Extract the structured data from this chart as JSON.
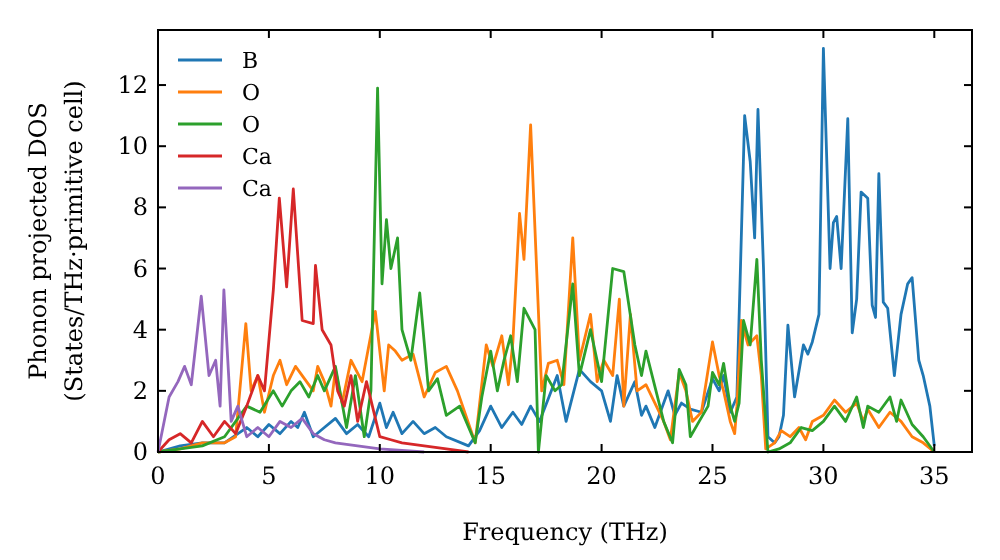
{
  "chart_data": {
    "type": "line",
    "xlabel": "Frequency (THz)",
    "ylabel": "Phonon projected DOS\n(States/THz·primitive cell)",
    "xlim": [
      0,
      36.7
    ],
    "ylim": [
      0,
      13.8
    ],
    "xticks": [
      0,
      5,
      10,
      15,
      20,
      25,
      30,
      35
    ],
    "yticks": [
      0,
      2,
      4,
      6,
      8,
      10,
      12
    ],
    "legend": "top left",
    "grid": false,
    "series": [
      {
        "name": "B",
        "color": "#1f77b4",
        "x": [
          0,
          1,
          2,
          3,
          4,
          4.5,
          5,
          5.5,
          6,
          6.3,
          6.6,
          7,
          7.5,
          8,
          8.5,
          9,
          9.5,
          10,
          10.3,
          10.6,
          11,
          11.5,
          12,
          12.5,
          13,
          14,
          14.5,
          15,
          15.5,
          16,
          16.4,
          16.8,
          17.2,
          18,
          18.4,
          19,
          19.5,
          20,
          20.4,
          20.7,
          21,
          21.5,
          21.8,
          22,
          22.4,
          23,
          23.3,
          23.6,
          24,
          24.5,
          25,
          25.3,
          25.5,
          25.8,
          26.1,
          26.45,
          26.7,
          26.9,
          27.05,
          27.3,
          27.5,
          27.8,
          28,
          28.2,
          28.4,
          28.7,
          29.1,
          29.3,
          29.5,
          29.8,
          30,
          30.3,
          30.45,
          30.6,
          30.8,
          31.1,
          31.3,
          31.5,
          31.7,
          32,
          32.2,
          32.35,
          32.5,
          32.7,
          32.9,
          33.2,
          33.5,
          33.8,
          34,
          34.3,
          34.5,
          34.8,
          35
        ],
        "values": [
          0,
          0.2,
          0.3,
          0.3,
          0.8,
          0.5,
          0.9,
          0.6,
          1.0,
          0.8,
          1.3,
          0.5,
          0.8,
          1.1,
          0.6,
          0.9,
          0.5,
          1.6,
          0.8,
          1.3,
          0.6,
          1.0,
          0.6,
          0.8,
          0.5,
          0.2,
          0.7,
          1.5,
          0.8,
          1.3,
          0.9,
          1.5,
          1.0,
          2.5,
          1.0,
          2.7,
          2.3,
          2.0,
          1.0,
          2.5,
          1.5,
          2.3,
          1.2,
          1.5,
          0.8,
          2.0,
          1.2,
          1.6,
          1.4,
          1.3,
          2.4,
          2.0,
          2.5,
          1.3,
          1.8,
          11.0,
          9.5,
          7.0,
          11.2,
          6.0,
          0.5,
          0.3,
          0.5,
          1.2,
          4.15,
          1.8,
          3.5,
          3.2,
          3.6,
          4.5,
          13.2,
          6.0,
          7.5,
          7.7,
          6.0,
          10.9,
          3.9,
          5.0,
          8.5,
          8.3,
          4.8,
          4.4,
          9.1,
          4.9,
          4.7,
          2.5,
          4.5,
          5.5,
          5.7,
          3.0,
          2.5,
          1.5,
          0.2
        ]
      },
      {
        "name": "O",
        "color": "#ff7f0e",
        "x": [
          0,
          1,
          2,
          3,
          3.5,
          3.96,
          4.2,
          4.5,
          4.8,
          5.2,
          5.5,
          5.8,
          6.2,
          6.6,
          7,
          7.2,
          7.5,
          7.8,
          8,
          8.3,
          8.7,
          9.2,
          9.8,
          10.2,
          10.4,
          10.7,
          11,
          11.5,
          12,
          12.5,
          13,
          13.5,
          14.3,
          14.8,
          15.1,
          15.5,
          15.8,
          16,
          16.3,
          16.5,
          16.8,
          17.3,
          17.6,
          18,
          18.3,
          18.7,
          19,
          19.5,
          19.8,
          20.1,
          20.5,
          20.8,
          21.0,
          21.3,
          21.6,
          22,
          22.8,
          23.1,
          23.5,
          23.8,
          24.1,
          24.5,
          25,
          25.3,
          25.5,
          25.8,
          26,
          26.1,
          26.3,
          26.6,
          27,
          27.2,
          27.4,
          27.8,
          28.1,
          28.5,
          28.9,
          29.2,
          29.5,
          30,
          30.5,
          31,
          31.5,
          31.8,
          32,
          32.5,
          33,
          33.5,
          34,
          34.5,
          35
        ],
        "values": [
          0,
          0.1,
          0.3,
          0.3,
          0.5,
          4.2,
          2.0,
          2.5,
          1.3,
          2.5,
          3.0,
          2.2,
          2.8,
          2.4,
          2.0,
          2.8,
          2.3,
          1.5,
          2.7,
          1.6,
          3.0,
          2.3,
          4.6,
          2.0,
          3.5,
          3.3,
          3.0,
          3.2,
          1.8,
          2.6,
          2.8,
          2.0,
          0.3,
          3.5,
          2.8,
          3.8,
          2.2,
          3.6,
          7.8,
          6.3,
          10.7,
          2.0,
          2.9,
          3.0,
          2.2,
          7.0,
          3.0,
          4.5,
          2.3,
          3.0,
          2.5,
          5.0,
          1.5,
          4.5,
          2.0,
          2.2,
          1.0,
          0.4,
          2.6,
          2.0,
          1.0,
          1.3,
          3.6,
          2.5,
          2.0,
          1.0,
          0.6,
          1.5,
          4.3,
          3.5,
          3.8,
          2.5,
          0.1,
          0.3,
          0.7,
          0.5,
          0.8,
          0.4,
          1.0,
          1.2,
          1.7,
          1.3,
          1.6,
          1.0,
          1.4,
          0.8,
          1.3,
          1.0,
          0.5,
          0.3,
          0
        ]
      },
      {
        "name": "O",
        "color": "#2ca02c",
        "x": [
          0,
          1,
          2,
          3,
          4,
          4.6,
          5.2,
          5.6,
          6,
          6.4,
          6.8,
          7.2,
          7.5,
          8,
          8.5,
          8.9,
          9.3,
          9.6,
          9.9,
          10.1,
          10.3,
          10.5,
          10.8,
          11,
          11.4,
          11.8,
          12.2,
          12.6,
          13,
          13.6,
          14.3,
          14.6,
          15,
          15.3,
          15.6,
          15.9,
          16.2,
          16.5,
          17,
          17.15,
          17.5,
          17.9,
          18.2,
          18.7,
          19,
          19.5,
          20,
          20.5,
          21.0,
          21.5,
          21.8,
          22,
          22.8,
          23.2,
          23.5,
          23.8,
          24,
          24.4,
          24.8,
          25,
          25.3,
          25.5,
          25.8,
          26,
          26.2,
          26.4,
          26.7,
          27,
          27.2,
          27.5,
          28,
          28.5,
          29,
          29.5,
          30,
          30.5,
          31,
          31.5,
          31.8,
          32,
          32.5,
          33,
          33.3,
          33.5,
          34,
          34.5,
          35
        ],
        "values": [
          0,
          0.1,
          0.2,
          0.5,
          1.5,
          1.3,
          2.0,
          1.5,
          2.0,
          2.3,
          1.8,
          2.5,
          2.0,
          2.8,
          0.8,
          2.5,
          0.5,
          2.0,
          11.9,
          5.5,
          7.6,
          6.0,
          7.0,
          4.0,
          3.0,
          5.2,
          2.0,
          2.4,
          1.2,
          1.5,
          0.3,
          1.8,
          3.3,
          2.0,
          3.0,
          3.8,
          2.3,
          4.7,
          4.0,
          0,
          2.5,
          2.0,
          2.2,
          5.5,
          2.5,
          4.0,
          2.3,
          6.0,
          5.9,
          3.5,
          2.5,
          3.3,
          1.0,
          0.3,
          2.7,
          2.2,
          0.5,
          1.0,
          1.5,
          2.6,
          2.2,
          2.9,
          1.5,
          1.0,
          1.6,
          4.3,
          3.5,
          6.3,
          3.0,
          0,
          0.1,
          0.3,
          0.8,
          0.7,
          1.0,
          1.5,
          1.0,
          1.8,
          0.8,
          1.5,
          1.3,
          1.8,
          1.0,
          1.7,
          0.9,
          0.5,
          0
        ]
      },
      {
        "name": "Ca",
        "color": "#d62728",
        "x": [
          0,
          0.5,
          1,
          1.5,
          2,
          2.5,
          3,
          3.5,
          4,
          4.5,
          4.8,
          5.2,
          5.47,
          5.8,
          6.1,
          6.5,
          7.0,
          7.1,
          7.4,
          7.8,
          8.1,
          8.4,
          8.7,
          9,
          9.4,
          10,
          10.5,
          11,
          12,
          13,
          14
        ],
        "values": [
          0,
          0.4,
          0.6,
          0.3,
          1.0,
          0.5,
          1.0,
          0.6,
          1.5,
          2.5,
          2.0,
          5.3,
          8.3,
          5.4,
          8.6,
          4.3,
          4.2,
          6.1,
          4.0,
          3.5,
          2.0,
          1.5,
          2.5,
          1.0,
          2.3,
          0.5,
          0.4,
          0.3,
          0.2,
          0.1,
          0
        ]
      },
      {
        "name": "Ca",
        "color": "#9467bd",
        "x": [
          0,
          0.5,
          0.9,
          1.2,
          1.5,
          1.95,
          2.3,
          2.6,
          2.8,
          2.97,
          3.3,
          3.6,
          4,
          4.5,
          5,
          5.5,
          6,
          6.5,
          7,
          7.5,
          8,
          9,
          10,
          12
        ],
        "values": [
          0,
          1.8,
          2.3,
          2.8,
          2.2,
          5.1,
          2.5,
          3.0,
          1.5,
          5.3,
          1.0,
          1.5,
          0.5,
          0.8,
          0.5,
          1.0,
          0.8,
          1.1,
          0.6,
          0.4,
          0.3,
          0.2,
          0.1,
          0
        ]
      }
    ]
  }
}
